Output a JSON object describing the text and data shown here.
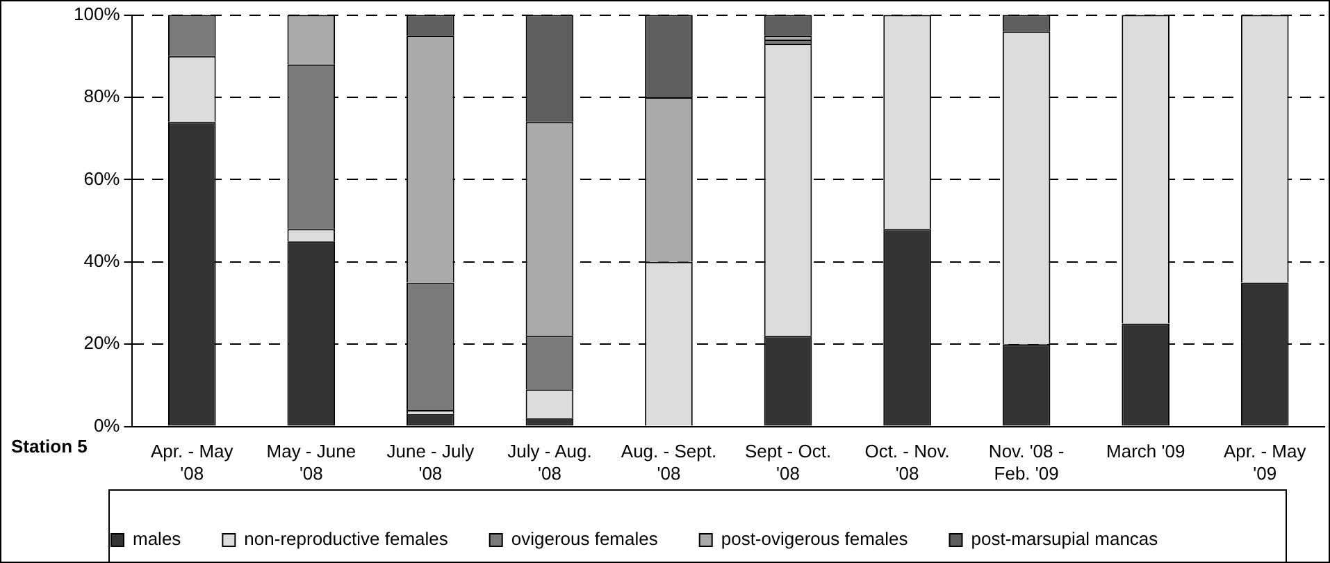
{
  "chart_data": {
    "type": "bar",
    "stacked": true,
    "categories": [
      "Apr. - May '08",
      "May - June '08",
      "June - July '08",
      "July - Aug. '08",
      "Aug. - Sept. '08",
      "Sept - Oct. '08",
      "Oct. - Nov. '08",
      "Nov. '08 - Feb. '09",
      "March '09",
      "Apr. - May '09"
    ],
    "series": [
      {
        "name": "males",
        "color": "#333333",
        "values": [
          74,
          45,
          3,
          2,
          0,
          22,
          48,
          20,
          25,
          35
        ]
      },
      {
        "name": "non-reproductive females",
        "color": "#dcdcdc",
        "values": [
          16,
          3,
          1,
          7,
          40,
          71,
          52,
          76,
          75,
          65
        ]
      },
      {
        "name": "ovigerous females",
        "color": "#7a7a7a",
        "values": [
          10,
          40,
          31,
          13,
          0,
          1,
          0,
          0,
          0,
          0
        ]
      },
      {
        "name": "post-ovigerous females",
        "color": "#aaaaaa",
        "values": [
          0,
          12,
          60,
          52,
          40,
          1,
          0,
          0,
          0,
          0
        ]
      },
      {
        "name": "post-marsupial mancas",
        "color": "#5e5e5e",
        "values": [
          0,
          0,
          5,
          26,
          20,
          5,
          0,
          4,
          0,
          0
        ]
      }
    ],
    "ylim": [
      0,
      100
    ],
    "yticks": [
      {
        "value": 0,
        "label": "0%"
      },
      {
        "value": 20,
        "label": "20%"
      },
      {
        "value": 40,
        "label": "40%"
      },
      {
        "value": 60,
        "label": "60%"
      },
      {
        "value": 80,
        "label": "80%"
      },
      {
        "value": 100,
        "label": "100%"
      }
    ],
    "grid": "y",
    "legend": "bottom",
    "annotations": [
      "Station 5"
    ]
  }
}
